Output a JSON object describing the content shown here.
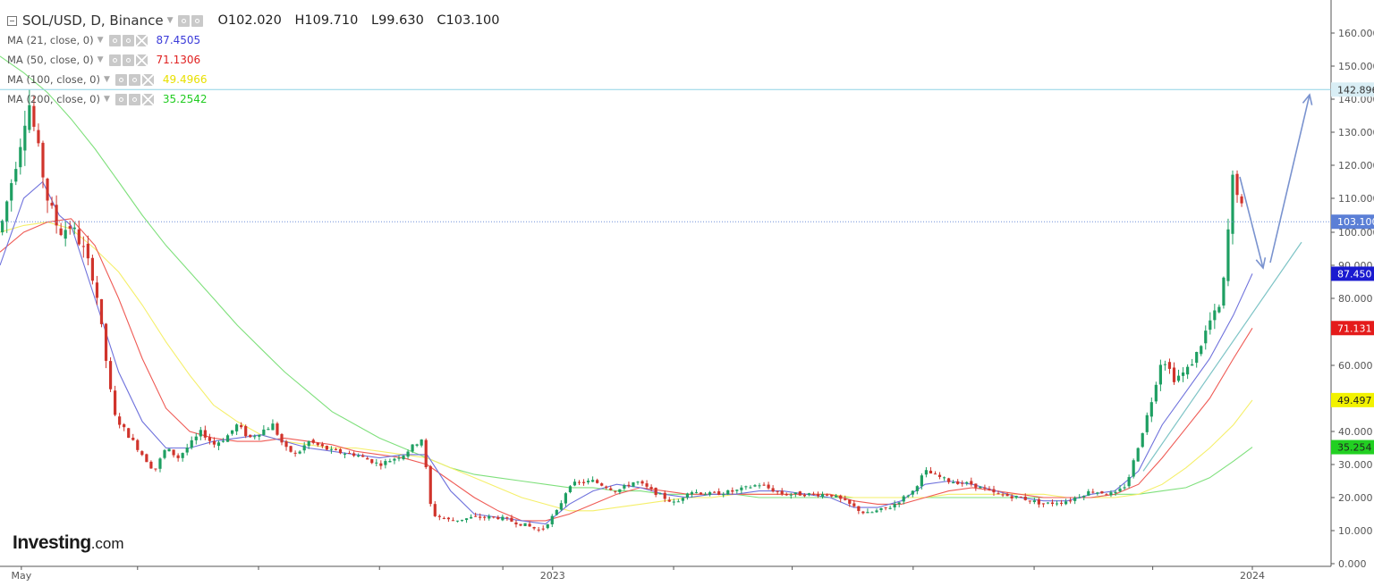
{
  "header": {
    "symbol": "SOL/USD, D, Binance",
    "open_label": "O",
    "open": "102.020",
    "high_label": "H",
    "high": "109.710",
    "low_label": "L",
    "low": "99.630",
    "close_label": "C",
    "close": "103.100"
  },
  "indicators": [
    {
      "label": "MA (21, close, 0)",
      "value": "87.4505",
      "color": "#3b3bd9"
    },
    {
      "label": "MA (50, close, 0)",
      "value": "71.1306",
      "color": "#e02020"
    },
    {
      "label": "MA (100, close, 0)",
      "value": "49.4966",
      "color": "#e8e000"
    },
    {
      "label": "MA (200, close, 0)",
      "value": "35.2542",
      "color": "#22cc22"
    }
  ],
  "brand": {
    "name": "Investing",
    "domain": ".com"
  },
  "colors": {
    "up": "#1e9f62",
    "down": "#d0342c",
    "ma21": "#6f72dc",
    "ma50": "#ef5b55",
    "ma100": "#f5ef6a",
    "ma200": "#7fe07c",
    "resistance": "#8fd3e6",
    "price_line": "#6e8fd8",
    "trendline": "#7ec4c6",
    "arrows": "#7a93cf"
  },
  "chart_data": {
    "type": "candlestick",
    "ylim": [
      0,
      165
    ],
    "yticks": [
      "160.000",
      "150.000",
      "140.000",
      "130.000",
      "120.000",
      "110.000",
      "100.000",
      "90.000",
      "80.000",
      "60.000",
      "40.000",
      "30.000",
      "20.000",
      "10.000",
      "0.000"
    ],
    "ytick_values": [
      160,
      150,
      140,
      130,
      120,
      110,
      100,
      90,
      80,
      60,
      40,
      30,
      20,
      10,
      0
    ],
    "xticks": [
      "May",
      "2023",
      "2024"
    ],
    "current_price_label": "103.100",
    "resistance_label": "142.896",
    "last_values": [
      {
        "series": "MA 21",
        "label": "87.450"
      },
      {
        "series": "MA 50",
        "label": "71.131"
      },
      {
        "series": "MA 100",
        "label": "49.497"
      },
      {
        "series": "MA 200",
        "label": "35.254"
      }
    ],
    "close_path": [
      [
        0,
        100
      ],
      [
        0.8,
        125
      ],
      [
        1.2,
        140
      ],
      [
        1.6,
        125
      ],
      [
        2,
        110
      ],
      [
        2.5,
        100
      ],
      [
        3,
        102
      ],
      [
        3.5,
        95
      ],
      [
        4,
        85
      ],
      [
        4.4,
        65
      ],
      [
        4.8,
        45
      ],
      [
        5.3,
        40
      ],
      [
        6,
        33
      ],
      [
        6.5,
        28
      ],
      [
        7,
        35
      ],
      [
        7.5,
        32
      ],
      [
        8,
        36
      ],
      [
        8.5,
        40
      ],
      [
        9,
        36
      ],
      [
        9.5,
        38
      ],
      [
        10,
        42
      ],
      [
        10.5,
        38
      ],
      [
        11,
        40
      ],
      [
        11.5,
        42
      ],
      [
        12,
        35
      ],
      [
        12.5,
        33
      ],
      [
        13,
        37
      ],
      [
        14,
        34
      ],
      [
        15,
        33
      ],
      [
        16,
        30
      ],
      [
        17,
        33
      ],
      [
        17.8,
        38
      ],
      [
        18.2,
        15
      ],
      [
        19,
        13
      ],
      [
        20,
        14
      ],
      [
        21,
        14
      ],
      [
        22,
        12
      ],
      [
        22.8,
        10
      ],
      [
        23.5,
        16
      ],
      [
        24,
        24
      ],
      [
        25,
        25
      ],
      [
        26,
        22
      ],
      [
        26.8,
        25
      ],
      [
        27.5,
        22
      ],
      [
        28.5,
        18
      ],
      [
        29,
        22
      ],
      [
        30,
        21
      ],
      [
        31,
        22
      ],
      [
        32,
        24
      ],
      [
        33,
        21
      ],
      [
        34,
        21
      ],
      [
        35,
        21
      ],
      [
        35.8,
        18
      ],
      [
        36.5,
        15
      ],
      [
        37.5,
        17
      ],
      [
        38.5,
        22
      ],
      [
        39,
        28
      ],
      [
        40,
        25
      ],
      [
        41,
        24
      ],
      [
        42,
        21
      ],
      [
        43,
        20
      ],
      [
        44,
        18
      ],
      [
        45,
        19
      ],
      [
        46,
        22
      ],
      [
        47,
        21
      ],
      [
        47.5,
        24
      ],
      [
        48,
        36
      ],
      [
        48.5,
        48
      ],
      [
        49,
        63
      ],
      [
        49.5,
        56
      ],
      [
        50,
        58
      ],
      [
        50.5,
        64
      ],
      [
        51,
        73
      ],
      [
        51.5,
        78
      ],
      [
        52,
        118
      ],
      [
        52.3,
        108
      ],
      [
        52.5,
        103
      ]
    ],
    "ma_paths": {
      "ma21": [
        [
          0,
          90
        ],
        [
          1,
          110
        ],
        [
          1.8,
          115
        ],
        [
          2.5,
          105
        ],
        [
          3,
          102
        ],
        [
          4,
          80
        ],
        [
          5,
          58
        ],
        [
          6,
          43
        ],
        [
          7,
          35
        ],
        [
          8,
          35
        ],
        [
          9,
          37
        ],
        [
          10,
          38
        ],
        [
          11,
          39
        ],
        [
          12,
          37
        ],
        [
          13,
          35
        ],
        [
          14,
          34
        ],
        [
          15,
          33
        ],
        [
          16,
          32
        ],
        [
          17,
          33
        ],
        [
          18,
          33
        ],
        [
          19,
          22
        ],
        [
          20,
          15
        ],
        [
          21,
          14
        ],
        [
          22,
          13
        ],
        [
          23,
          12
        ],
        [
          24,
          18
        ],
        [
          25,
          22
        ],
        [
          26,
          24
        ],
        [
          27,
          23
        ],
        [
          28,
          21
        ],
        [
          29,
          20
        ],
        [
          30,
          21
        ],
        [
          31,
          21
        ],
        [
          32,
          22
        ],
        [
          33,
          22
        ],
        [
          34,
          21
        ],
        [
          35,
          20
        ],
        [
          36,
          17
        ],
        [
          37,
          17
        ],
        [
          38,
          19
        ],
        [
          39,
          24
        ],
        [
          40,
          25
        ],
        [
          41,
          24
        ],
        [
          42,
          22
        ],
        [
          43,
          20
        ],
        [
          44,
          19
        ],
        [
          45,
          19
        ],
        [
          46,
          21
        ],
        [
          47,
          22
        ],
        [
          48,
          28
        ],
        [
          49,
          42
        ],
        [
          50,
          52
        ],
        [
          51,
          62
        ],
        [
          52,
          75
        ],
        [
          52.8,
          87.45
        ]
      ],
      "ma50": [
        [
          0,
          94
        ],
        [
          1,
          100
        ],
        [
          2,
          103
        ],
        [
          3,
          104
        ],
        [
          4,
          96
        ],
        [
          5,
          80
        ],
        [
          6,
          62
        ],
        [
          7,
          47
        ],
        [
          8,
          40
        ],
        [
          9,
          38
        ],
        [
          10,
          37
        ],
        [
          11,
          37
        ],
        [
          12,
          38
        ],
        [
          13,
          37
        ],
        [
          14,
          36
        ],
        [
          15,
          34
        ],
        [
          16,
          33
        ],
        [
          17,
          32
        ],
        [
          18,
          30
        ],
        [
          19,
          25
        ],
        [
          20,
          20
        ],
        [
          21,
          16
        ],
        [
          22,
          13
        ],
        [
          23,
          13
        ],
        [
          24,
          15
        ],
        [
          25,
          18
        ],
        [
          26,
          21
        ],
        [
          27,
          23
        ],
        [
          28,
          22
        ],
        [
          29,
          21
        ],
        [
          30,
          21
        ],
        [
          31,
          21
        ],
        [
          32,
          21
        ],
        [
          33,
          21
        ],
        [
          34,
          21
        ],
        [
          35,
          21
        ],
        [
          36,
          19
        ],
        [
          37,
          18
        ],
        [
          38,
          18
        ],
        [
          39,
          20
        ],
        [
          40,
          22
        ],
        [
          41,
          23
        ],
        [
          42,
          22
        ],
        [
          43,
          21
        ],
        [
          44,
          20
        ],
        [
          45,
          20
        ],
        [
          46,
          20
        ],
        [
          47,
          21
        ],
        [
          48,
          24
        ],
        [
          49,
          32
        ],
        [
          50,
          41
        ],
        [
          51,
          50
        ],
        [
          52,
          62
        ],
        [
          52.8,
          71.13
        ]
      ],
      "ma100": [
        [
          0,
          100
        ],
        [
          1,
          102
        ],
        [
          2,
          103
        ],
        [
          3,
          101
        ],
        [
          4,
          95
        ],
        [
          5,
          88
        ],
        [
          6,
          78
        ],
        [
          7,
          67
        ],
        [
          8,
          57
        ],
        [
          9,
          48
        ],
        [
          10,
          43
        ],
        [
          11,
          39
        ],
        [
          12,
          37
        ],
        [
          13,
          36
        ],
        [
          14,
          35
        ],
        [
          15,
          35
        ],
        [
          16,
          34
        ],
        [
          17,
          33
        ],
        [
          18,
          32
        ],
        [
          19,
          29
        ],
        [
          20,
          26
        ],
        [
          21,
          23
        ],
        [
          22,
          20
        ],
        [
          23,
          18
        ],
        [
          24,
          16
        ],
        [
          25,
          16
        ],
        [
          26,
          17
        ],
        [
          27,
          18
        ],
        [
          28,
          19
        ],
        [
          29,
          20
        ],
        [
          30,
          20
        ],
        [
          31,
          21
        ],
        [
          32,
          21
        ],
        [
          33,
          21
        ],
        [
          34,
          21
        ],
        [
          35,
          21
        ],
        [
          36,
          20
        ],
        [
          37,
          20
        ],
        [
          38,
          20
        ],
        [
          39,
          20
        ],
        [
          40,
          21
        ],
        [
          41,
          21
        ],
        [
          42,
          21
        ],
        [
          43,
          21
        ],
        [
          44,
          21
        ],
        [
          45,
          20
        ],
        [
          46,
          20
        ],
        [
          47,
          20
        ],
        [
          48,
          21
        ],
        [
          49,
          24
        ],
        [
          50,
          29
        ],
        [
          51,
          35
        ],
        [
          52,
          42
        ],
        [
          52.8,
          49.5
        ]
      ],
      "ma200": [
        [
          0,
          153
        ],
        [
          1,
          148
        ],
        [
          2,
          142
        ],
        [
          3,
          134
        ],
        [
          4,
          125
        ],
        [
          5,
          115
        ],
        [
          6,
          105
        ],
        [
          7,
          96
        ],
        [
          8,
          88
        ],
        [
          9,
          80
        ],
        [
          10,
          72
        ],
        [
          11,
          65
        ],
        [
          12,
          58
        ],
        [
          13,
          52
        ],
        [
          14,
          46
        ],
        [
          15,
          42
        ],
        [
          16,
          38
        ],
        [
          17,
          35
        ],
        [
          18,
          32
        ],
        [
          19,
          29
        ],
        [
          20,
          27
        ],
        [
          21,
          26
        ],
        [
          22,
          25
        ],
        [
          23,
          24
        ],
        [
          24,
          23
        ],
        [
          25,
          23
        ],
        [
          26,
          22
        ],
        [
          27,
          22
        ],
        [
          28,
          21
        ],
        [
          29,
          21
        ],
        [
          30,
          21
        ],
        [
          31,
          21
        ],
        [
          32,
          20
        ],
        [
          33,
          20
        ],
        [
          34,
          20
        ],
        [
          35,
          20
        ],
        [
          36,
          20
        ],
        [
          37,
          20
        ],
        [
          38,
          20
        ],
        [
          39,
          20
        ],
        [
          40,
          20
        ],
        [
          41,
          20
        ],
        [
          42,
          20
        ],
        [
          43,
          20
        ],
        [
          44,
          20
        ],
        [
          45,
          20
        ],
        [
          46,
          20
        ],
        [
          47,
          21
        ],
        [
          48,
          21
        ],
        [
          49,
          22
        ],
        [
          50,
          23
        ],
        [
          51,
          26
        ],
        [
          52,
          31
        ],
        [
          52.8,
          35.25
        ]
      ]
    }
  }
}
